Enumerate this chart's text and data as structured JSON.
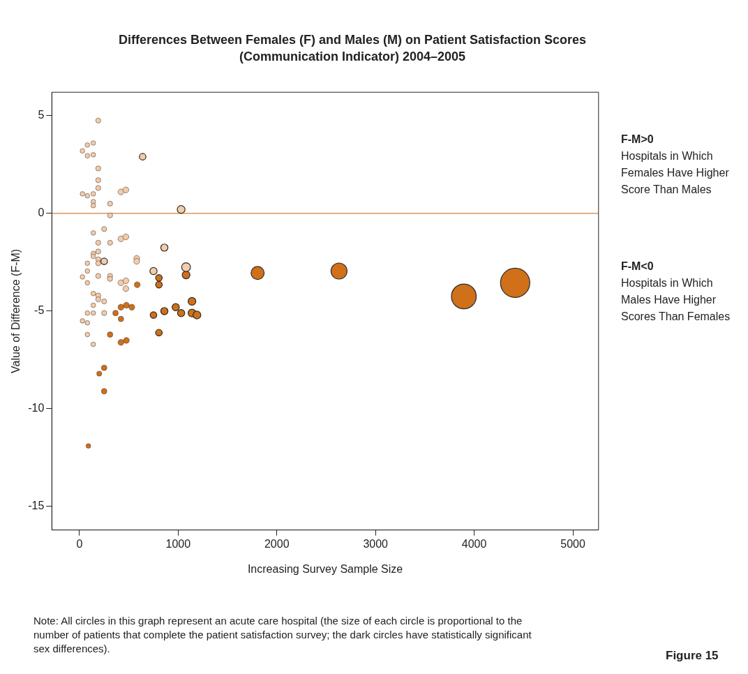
{
  "chart_data": {
    "type": "bubble",
    "title": "Differences Between Females (F) and Males (M) on Patient Satisfaction Scores (Communication Indicator) 2004–2005",
    "xlabel": "Increasing Survey Sample Size",
    "ylabel": "Value of Difference (F-M)",
    "xlim": [
      -280,
      5260
    ],
    "xticks": [
      0,
      1000,
      2000,
      3000,
      4000,
      5000
    ],
    "ylim": [
      -16.2,
      6.2
    ],
    "yticks": [
      -15,
      -10,
      -5,
      0,
      5
    ],
    "grid": false,
    "legend": false,
    "ref_lines": [
      {
        "axis": "y",
        "value": 0,
        "color": "#e0955a"
      }
    ],
    "annotations": [
      "F-M>0",
      "Hospitals in Which Females Have Higher Score Than Males",
      "F-M<0",
      "Hospitals in Which Males Have Higher Scores Than Females",
      "Note: All circles in this graph represent an acute care hospital (the size of each circle is proportional to the number of patients that complete the patient satisfaction survey; the dark circles have statistically significant sex differences).",
      "Figure 15"
    ],
    "series": [
      {
        "color": "#f5cba8",
        "x": [
          190,
          80,
          140,
          30,
          80,
          140,
          190,
          190,
          190,
          30,
          80,
          140,
          140,
          140,
          310,
          310,
          640,
          420,
          470,
          1030,
          250,
          140,
          190,
          310,
          420,
          470,
          860,
          140,
          190,
          140,
          190,
          190,
          250,
          80,
          80,
          30,
          190,
          310,
          310,
          580,
          580,
          750,
          420,
          470,
          470,
          1080,
          80,
          140,
          190,
          190,
          250,
          140,
          80,
          140,
          250,
          30,
          80,
          80,
          140
        ],
        "values": [
          4.75,
          3.5,
          3.6,
          3.2,
          2.95,
          3.0,
          2.3,
          1.7,
          1.3,
          1.0,
          0.9,
          1.0,
          0.6,
          0.4,
          0.5,
          -0.1,
          2.9,
          1.1,
          1.2,
          0.2,
          -0.8,
          -1.0,
          -1.5,
          -1.5,
          -1.3,
          -1.2,
          -1.75,
          -2.05,
          -1.95,
          -2.2,
          -2.35,
          -2.55,
          -2.45,
          -2.55,
          -2.95,
          -3.25,
          -3.2,
          -3.2,
          -3.35,
          -2.3,
          -2.45,
          -2.95,
          -3.55,
          -3.45,
          -3.85,
          -2.75,
          -3.55,
          -4.1,
          -4.2,
          -4.4,
          -4.5,
          -4.7,
          -5.1,
          -5.1,
          -5.1,
          -5.5,
          -5.6,
          -6.2,
          -6.7
        ],
        "sizes": [
          0.03,
          0.025,
          0.025,
          0.025,
          0.025,
          0.025,
          0.03,
          0.03,
          0.03,
          0.025,
          0.025,
          0.025,
          0.025,
          0.025,
          0.03,
          0.03,
          0.05,
          0.04,
          0.04,
          0.07,
          0.03,
          0.025,
          0.03,
          0.03,
          0.04,
          0.04,
          0.06,
          0.025,
          0.03,
          0.025,
          0.03,
          0.03,
          0.05,
          0.025,
          0.025,
          0.025,
          0.03,
          0.03,
          0.03,
          0.04,
          0.04,
          0.06,
          0.04,
          0.04,
          0.04,
          0.09,
          0.025,
          0.025,
          0.03,
          0.03,
          0.03,
          0.025,
          0.025,
          0.025,
          0.03,
          0.025,
          0.025,
          0.025,
          0.025
        ]
      },
      {
        "color": "#d07018",
        "x": [
          365,
          420,
          475,
          530,
          420,
          585,
          805,
          805,
          1080,
          310,
          420,
          475,
          750,
          860,
          975,
          1030,
          1140,
          1140,
          1190,
          805,
          250,
          200,
          250,
          90,
          1805,
          2630,
          3895,
          4415
        ],
        "values": [
          -5.1,
          -4.8,
          -4.7,
          -4.8,
          -5.4,
          -3.65,
          -3.3,
          -3.65,
          -3.15,
          -6.2,
          -6.6,
          -6.5,
          -5.2,
          -5.0,
          -4.8,
          -5.1,
          -4.5,
          -5.1,
          -5.2,
          -6.1,
          -7.9,
          -8.2,
          -9.1,
          -11.9,
          -3.05,
          -2.95,
          -4.25,
          -3.55
        ],
        "sizes": [
          0.035,
          0.04,
          0.04,
          0.04,
          0.035,
          0.04,
          0.05,
          0.05,
          0.07,
          0.035,
          0.04,
          0.04,
          0.05,
          0.06,
          0.06,
          0.06,
          0.07,
          0.07,
          0.07,
          0.05,
          0.035,
          0.03,
          0.035,
          0.025,
          0.2,
          0.3,
          0.72,
          1
        ]
      }
    ]
  }
}
